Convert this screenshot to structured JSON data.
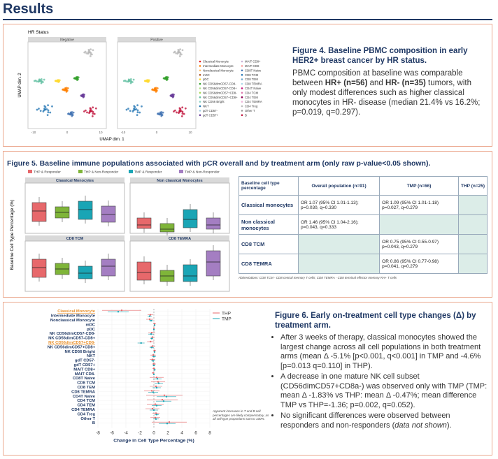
{
  "header": {
    "title": "Results"
  },
  "figure4": {
    "plot": {
      "title": "HR Status",
      "facets": [
        "Negative",
        "Positive"
      ],
      "ylabel": "UMAP dim. 2",
      "xlabel": "UMAP dim. 1",
      "xticks": [
        "-10",
        "0",
        "10"
      ],
      "legend": [
        "Classical Monocyte",
        "Intermediate Monocyte",
        "Nonclassical Monocyte",
        "mDC",
        "pDC",
        "NK CD56dimCD57-CD8-",
        "NK CD56dimCD57-CD8+",
        "NK CD56dimCD57+CD8-",
        "NK CD56dimCD57+CD8+",
        "NK CD56 Bright",
        "NKT",
        "gdT CD57-",
        "gdT CD57+",
        "MAIT CD8+",
        "MAIT CD8-",
        "CD8T Naive",
        "CD8 TCM",
        "CD8 TEM",
        "CD8 TEMRA",
        "CD4T Naive",
        "CD4 TCM",
        "CD4 TEM",
        "CD4 TEMRA",
        "CD4 Treg",
        "Other T",
        "B"
      ]
    },
    "label": "Figure 4.",
    "title": " Baseline PBMC composition in early HER2+ breast cancer by HR status.",
    "body": [
      {
        "text": "PBMC composition at baseline was comparable between "
      },
      {
        "text": "HR+ (n=56)",
        "bold": true
      },
      {
        "text": " and "
      },
      {
        "text": "HR- (n=35)",
        "bold": true
      },
      {
        "text": " tumors, with only modest differences such as higher classical monocytes in HR- disease (median 21.4% vs 16.2%; p=0.019, q=0.297)."
      }
    ]
  },
  "figure5": {
    "label": "Figure 5.",
    "title": " Baseline immune populations associated with pCR overall and by treatment arm (only raw p-value<0.05 shown).",
    "plot": {
      "legend": [
        {
          "name": "THP & Responder",
          "color": "#e7686b"
        },
        {
          "name": "THP & Non-Responder",
          "color": "#7fb539"
        },
        {
          "name": "TMP & Responder",
          "color": "#1aa5b5"
        },
        {
          "name": "TMP & Non-Responder",
          "color": "#a47ec2"
        }
      ],
      "ylabel": "Baseline Cell Type Percentage (%)",
      "panels": [
        "Classical Monocytes",
        "Non classical Monocytes",
        "CD8 TCM",
        "CD8 TEMRA"
      ]
    },
    "table": {
      "header": [
        "Baseline cell type percentage",
        "Overall population (n=91)",
        "TMP (n=66)",
        "THP (n=25)"
      ],
      "rows": [
        [
          "Classical monocytes",
          "OR 1.07 (95% CI 1.01-1.13); p=0.030, q=0.330",
          "OR 1.09 (95% CI 1.01-1.18) p=0.027, q=0.279",
          null
        ],
        [
          "Non classical monocytes",
          "OR 1.46 (95% CI 1.04-2.16); p=0.043, q=0.333",
          null,
          null
        ],
        [
          "CD8 TCM",
          null,
          "OR 0.75 (95% CI 0.55-0.97) p=0.043, q=0.279",
          null
        ],
        [
          "CD8 TEMRA",
          null,
          "OR 0.86 (95% CI 0.77-0.98) p=0.041, q=0.279",
          null
        ]
      ],
      "footnote": "Abbreviations: CD8 TCM - CD8 central memory T cells; CD8 TEMRA - CD8 terminal effector memory RA+ T cells"
    }
  },
  "figure6": {
    "chart": {
      "categories": [
        "Classical Monocyte",
        "Intermediate Monocyte",
        "Nonclassical Monocyte",
        "mDC",
        "pDC",
        "NK CD56dimCD57-CD8-",
        "NK CD56dimCD57-CD8+",
        "NK CD56dimCD57+CD8-",
        "NK CD56dimCD57+CD8+",
        "NK CD56 Bright",
        "NKT",
        "gdT CD57-",
        "gdT CD57+",
        "MAIT CD8+",
        "MAIT CD8-",
        "CD8T Naive",
        "CD8 TCM",
        "CD8 TEM",
        "CD8 TEMRA",
        "CD4T Naive",
        "CD4 TCM",
        "CD4 TEM",
        "CD4 TEMRA",
        "CD4 Treg",
        "Other T",
        "B"
      ],
      "series": [
        {
          "name": "THP",
          "color": "#e7686b",
          "values": [
            -4.6,
            -0.5,
            -0.6,
            0.1,
            0,
            -0.3,
            -0.2,
            -0.47,
            -0.2,
            0.1,
            -0.1,
            -0.2,
            0,
            0,
            -0.1,
            0.4,
            0.6,
            0.3,
            -0.3,
            1.5,
            1.2,
            0.2,
            -0.2,
            0.3,
            0.2,
            2.2
          ],
          "errors": [
            2.8,
            0.4,
            0.5,
            0.2,
            0.1,
            0.5,
            0.3,
            0.5,
            0.4,
            0.2,
            0.4,
            0.4,
            0.3,
            0.2,
            0.2,
            1,
            1,
            0.9,
            1.1,
            2.6,
            2.2,
            1.2,
            1,
            0.5,
            0.7,
            2.5
          ]
        },
        {
          "name": "TMP",
          "color": "#1aa5b5",
          "values": [
            -5.1,
            -0.6,
            -0.4,
            0.1,
            0,
            -0.4,
            -0.3,
            -1.83,
            -0.3,
            0.1,
            0,
            -0.1,
            0,
            0.1,
            0,
            0.5,
            0.7,
            0.4,
            -0.1,
            1.8,
            1.4,
            0.4,
            0,
            0.4,
            0.3,
            1.9
          ],
          "errors": [
            1.5,
            0.3,
            0.3,
            0.1,
            0.1,
            0.4,
            0.2,
            0.5,
            0.3,
            0.1,
            0.3,
            0.3,
            0.2,
            0.2,
            0.1,
            0.6,
            0.6,
            0.6,
            0.7,
            1.4,
            1.1,
            0.7,
            0.6,
            0.3,
            0.4,
            1.2
          ]
        }
      ],
      "xlim": [
        -8,
        8
      ],
      "xticks": [
        -8,
        -6,
        -4,
        -2,
        0,
        2,
        4,
        6,
        8
      ],
      "xlabel": "Change in Cell Type Percentage (%)",
      "highlight": [
        0,
        7
      ],
      "annotation": "Apparent increases in T and B cell percentages are likely compensatory, as all cell type proportions sum to 100%."
    },
    "label": "Figure 6.",
    "title": " Early on-treatment cell type changes (Δ) by treatment arm.",
    "bullets": [
      [
        {
          "text": "After 3 weeks of therapy, classical monocytes showed the largest change across all cell populations in both treatment arms (mean Δ -5.1% [p<0.001, q<0.001] in TMP and -4.6% [p=0.013 q=0.110] in THP)."
        }
      ],
      [
        {
          "text": "A decrease in one mature NK cell subset (CD56dimCD57+CD8a-) was observed only with TMP (TMP: mean Δ -1.83% vs THP: mean Δ -0.47%; mean difference TMP vs THP=-1.36; p=0.002, q=0.052)."
        }
      ],
      [
        {
          "text": "No significant differences were observed between responders and non-responders ("
        },
        {
          "text": "data not shown",
          "italic": true
        },
        {
          "text": ")."
        }
      ]
    ]
  }
}
